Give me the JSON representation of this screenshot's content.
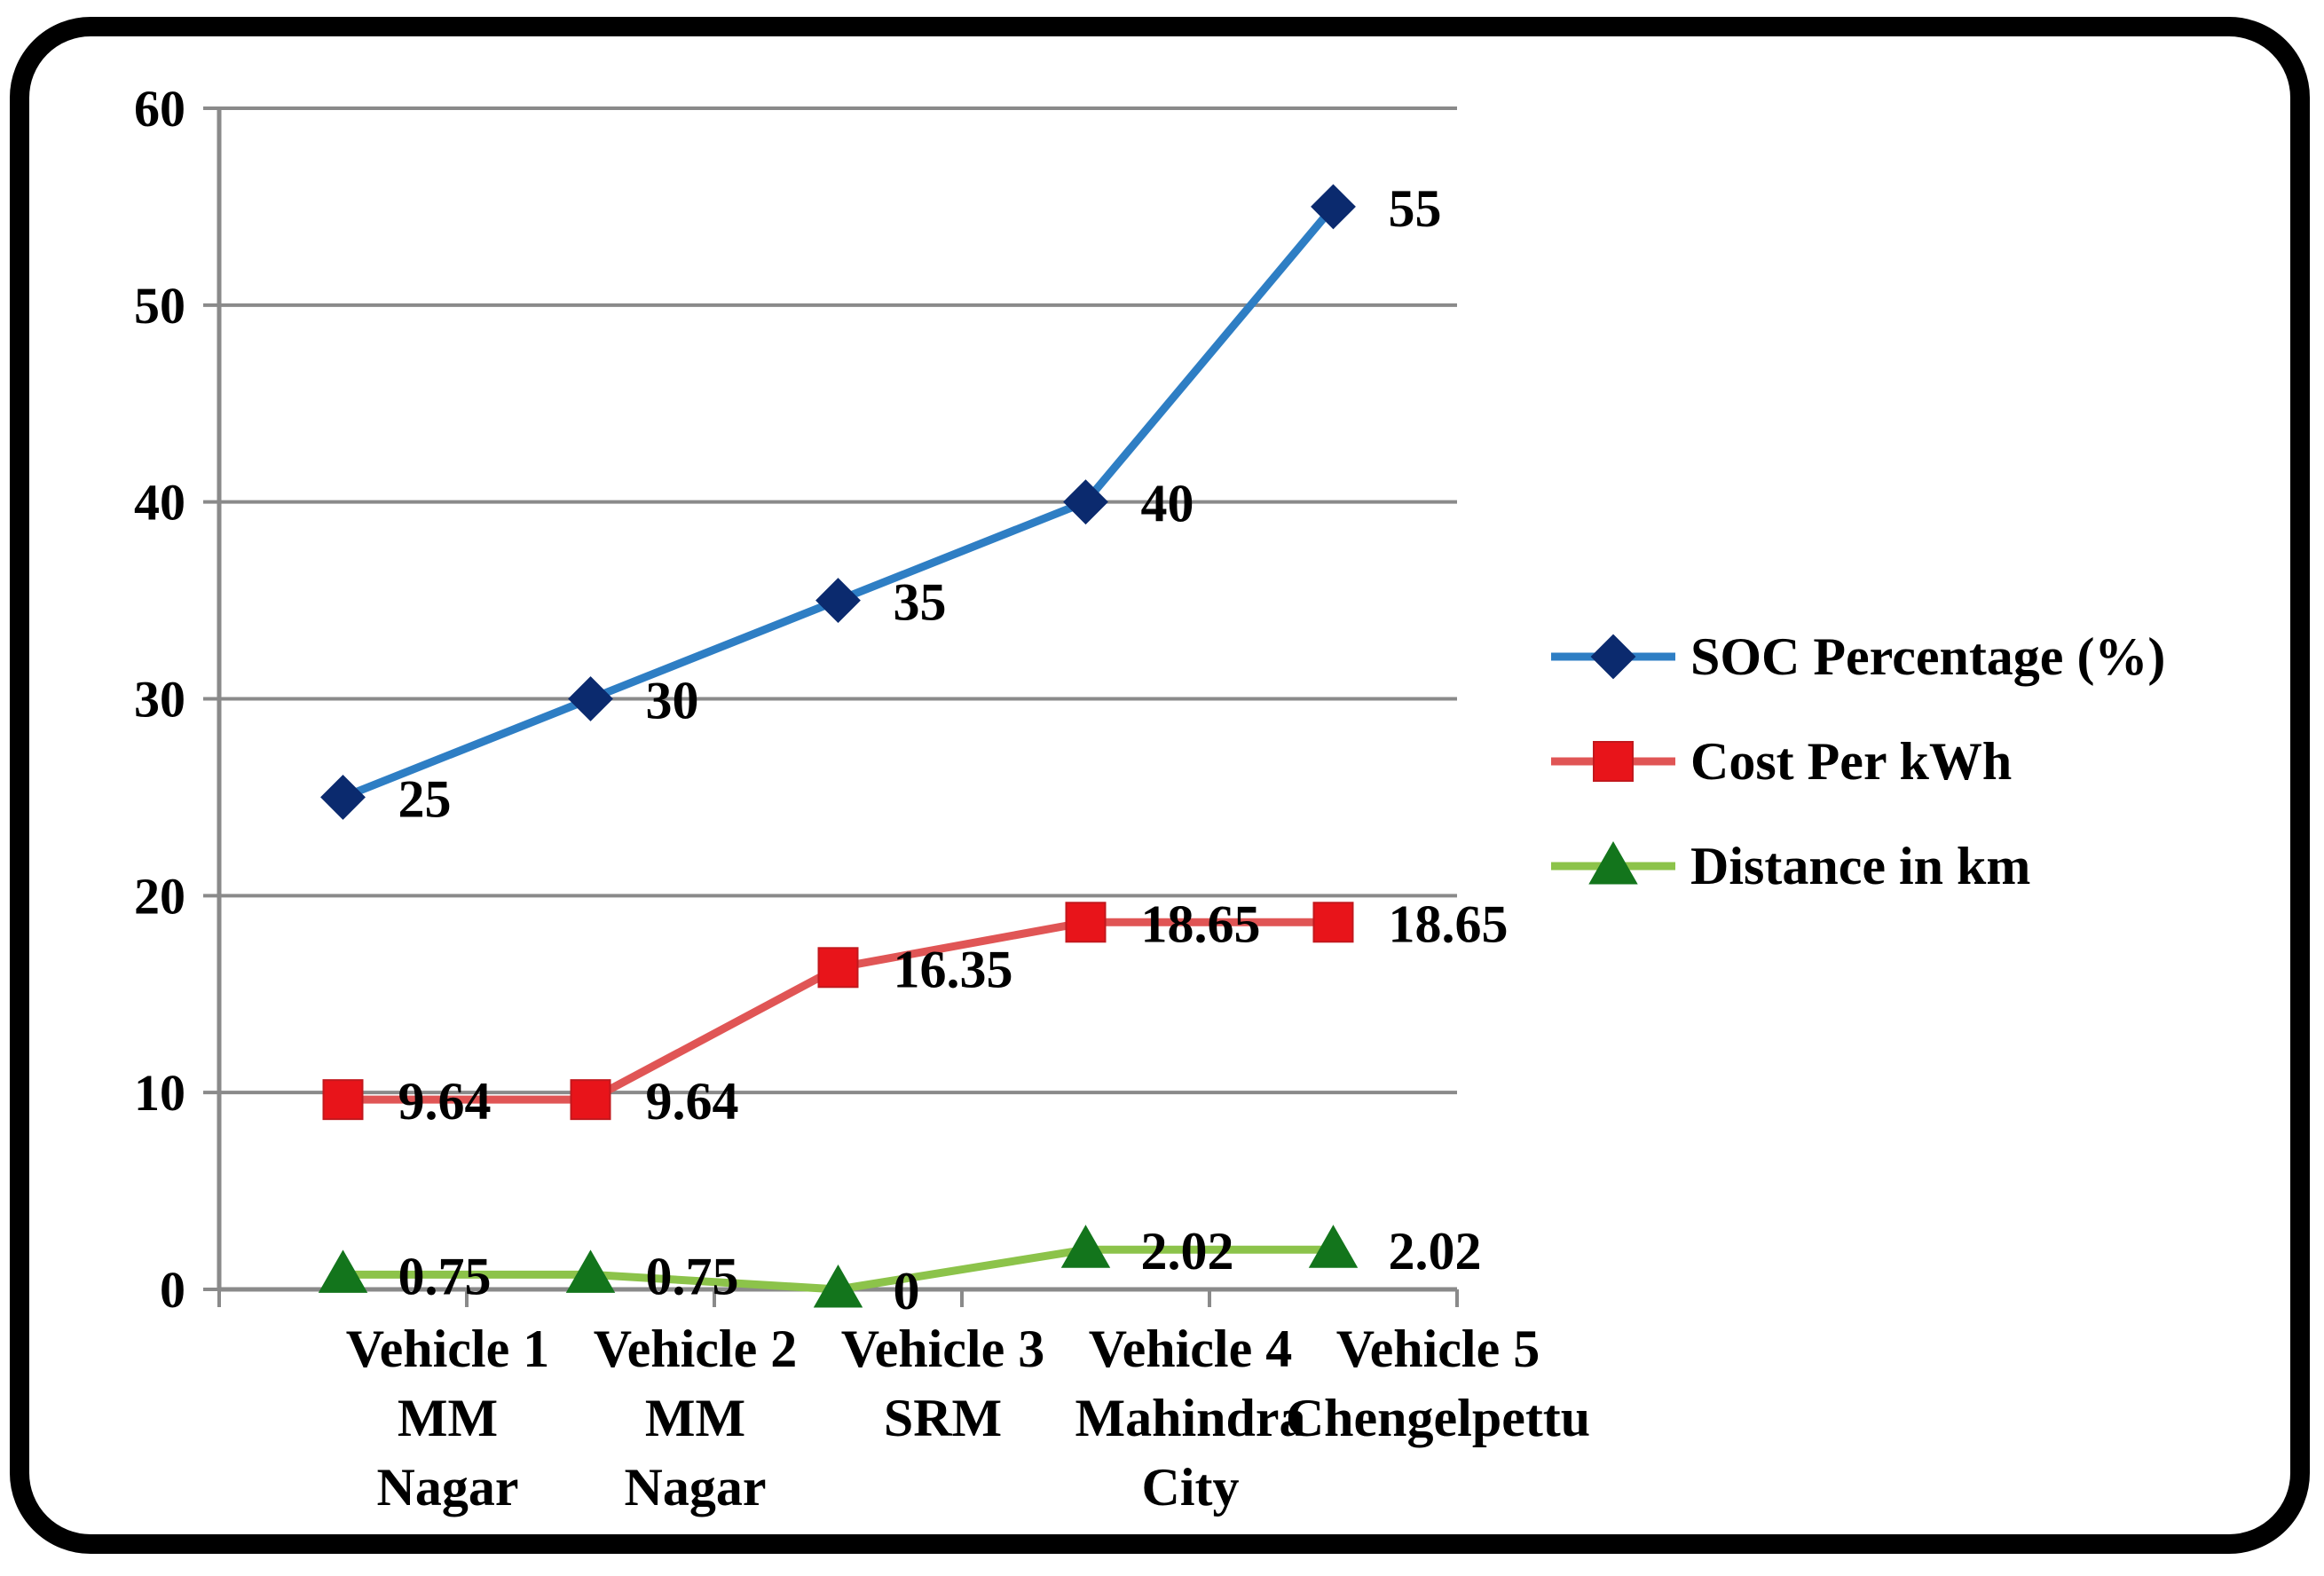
{
  "chart_data": {
    "type": "line",
    "title": "",
    "xlabel": "",
    "ylabel": "",
    "ylim": [
      0,
      60
    ],
    "yticks": [
      0,
      10,
      20,
      30,
      40,
      50,
      60
    ],
    "grid": true,
    "legend_position": "right",
    "categories": [
      [
        "Vehicle 1",
        "MM",
        "Nagar"
      ],
      [
        "Vehicle 2",
        "MM",
        "Nagar"
      ],
      [
        "Vehicle 3",
        "SRM"
      ],
      [
        "Vehicle 4",
        "Mahindra",
        "City"
      ],
      [
        "Vehicle 5",
        "Chengelpettu"
      ]
    ],
    "series": [
      {
        "name": "SOC Percentage (%)",
        "values": [
          25,
          30,
          35,
          40,
          55
        ],
        "labels": [
          "25",
          "30",
          "35",
          "40",
          "55"
        ],
        "color": "#2e7ec4",
        "marker": "diamond",
        "marker_color": "#0b2a6e"
      },
      {
        "name": "Cost Per kWh",
        "values": [
          9.64,
          9.64,
          16.35,
          18.65,
          18.65
        ],
        "labels": [
          "9.64",
          "9.64",
          "16.35",
          "18.65",
          "18.65"
        ],
        "color": "#e05555",
        "marker": "square",
        "marker_color": "#e8141a"
      },
      {
        "name": "Distance in km",
        "values": [
          0.75,
          0.75,
          0,
          2.02,
          2.02
        ],
        "labels": [
          "0.75",
          "0.75",
          "0",
          "2.02",
          "2.02"
        ],
        "color": "#8cc34a",
        "marker": "triangle",
        "marker_color": "#13751c"
      }
    ]
  }
}
